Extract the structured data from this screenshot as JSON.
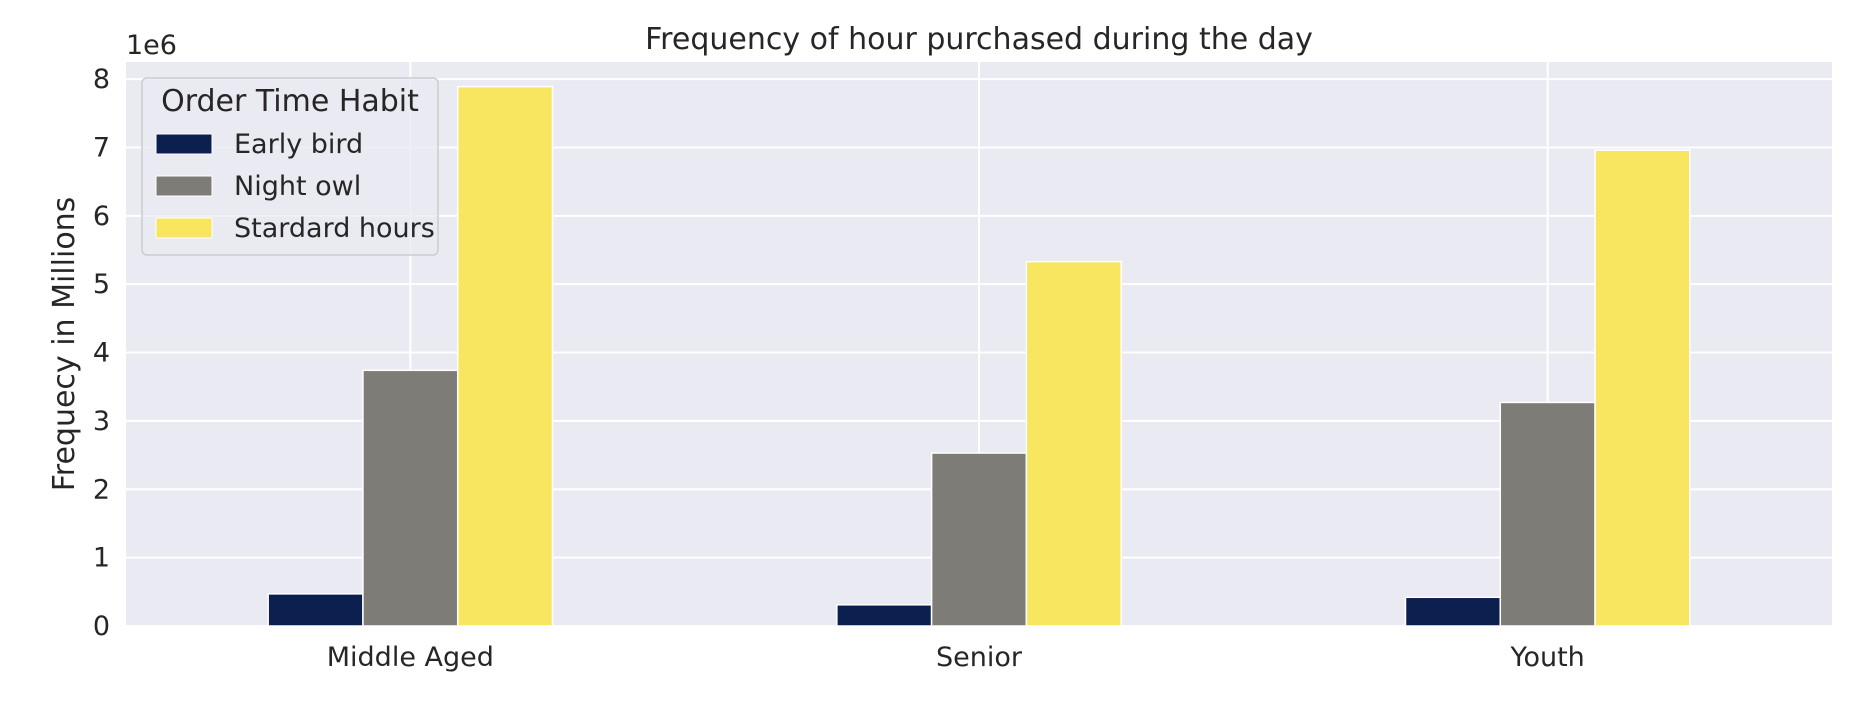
{
  "chart_data": {
    "type": "bar",
    "title": "Frequency of hour purchased during the day",
    "xlabel": "",
    "ylabel": "Frequecy in Millions",
    "offset_text": "1e6",
    "categories": [
      "Middle Aged",
      "Senior",
      "Youth"
    ],
    "series": [
      {
        "name": "Early bird",
        "color": "#0c2050",
        "values": [
          470000,
          310000,
          420000
        ]
      },
      {
        "name": "Night owl",
        "color": "#7e7c77",
        "values": [
          3740000,
          2530000,
          3270000
        ]
      },
      {
        "name": "Stardard hours",
        "color": "#f8e660",
        "values": [
          7890000,
          5330000,
          6960000
        ]
      }
    ],
    "ylim": [
      0,
      8250000
    ],
    "y_ticks": [
      0,
      1000000,
      2000000,
      3000000,
      4000000,
      5000000,
      6000000,
      7000000,
      8000000
    ],
    "y_tick_labels": [
      "0",
      "1",
      "2",
      "3",
      "4",
      "5",
      "6",
      "7",
      "8"
    ],
    "grid": true,
    "legend": {
      "title": "Order Time Habit",
      "position": "top-left"
    },
    "background_color": "#eaeaf2",
    "grid_color": "#ffffff"
  }
}
